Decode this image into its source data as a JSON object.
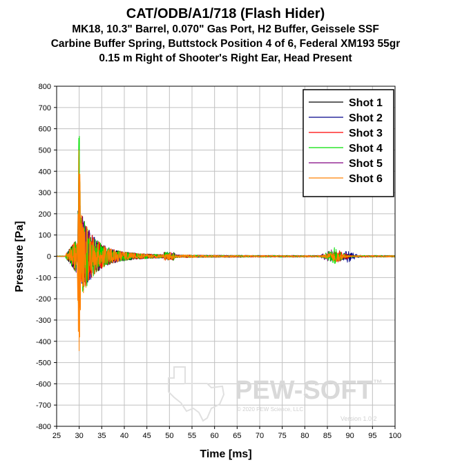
{
  "chart_data": {
    "type": "line",
    "title": "CAT/ODB/A1/718 (Flash Hider)",
    "subtitle_lines": [
      "MK18, 10.3\" Barrel, 0.070\" Gas Port, H2 Buffer, Geissele SSF",
      "Carbine Buffer Spring, Buttstock Position 4 of 6, Federal XM193 55gr",
      "0.15 m Right of Shooter's Right Ear, Head Present"
    ],
    "xlabel": "Time [ms]",
    "ylabel": "Pressure [Pa]",
    "xlim": [
      25,
      100
    ],
    "ylim": [
      -800,
      800
    ],
    "xticks": [
      25,
      30,
      35,
      40,
      45,
      50,
      55,
      60,
      65,
      70,
      75,
      80,
      85,
      90,
      95,
      100
    ],
    "yticks": [
      800,
      700,
      600,
      500,
      400,
      300,
      200,
      100,
      0,
      -100,
      -200,
      -300,
      -400,
      -500,
      -600,
      -700,
      -800
    ],
    "grid": true,
    "legend_position": "top-right",
    "series": [
      {
        "name": "Shot 1",
        "color": "#000000",
        "peak_max": 540,
        "peak_min": -230,
        "secondary_peak_time": 88.0,
        "secondary_amp": 20
      },
      {
        "name": "Shot 2",
        "color": "#00008b",
        "peak_max": 420,
        "peak_min": -230,
        "secondary_peak_time": 89.5,
        "secondary_amp": 28
      },
      {
        "name": "Shot 3",
        "color": "#ff0000",
        "peak_max": 430,
        "peak_min": -400,
        "secondary_peak_time": 87.5,
        "secondary_amp": 30
      },
      {
        "name": "Shot 4",
        "color": "#00e000",
        "peak_max": 690,
        "peak_min": -400,
        "secondary_peak_time": 86.5,
        "secondary_amp": 38
      },
      {
        "name": "Shot 5",
        "color": "#800080",
        "peak_max": 330,
        "peak_min": -260,
        "secondary_peak_time": 86.0,
        "secondary_amp": 32
      },
      {
        "name": "Shot 6",
        "color": "#ff8000",
        "peak_max": 680,
        "peak_min": -610,
        "secondary_peak_time": 86.8,
        "secondary_amp": 26
      }
    ],
    "peak_time_ms": 30.0,
    "signal_onset_ms": 27.0
  },
  "watermark": {
    "brand": "PEW-SOFT",
    "trademark": "™",
    "copyright": "© 2020 PEW Science, LLC",
    "version": "Version 1.0.2"
  }
}
